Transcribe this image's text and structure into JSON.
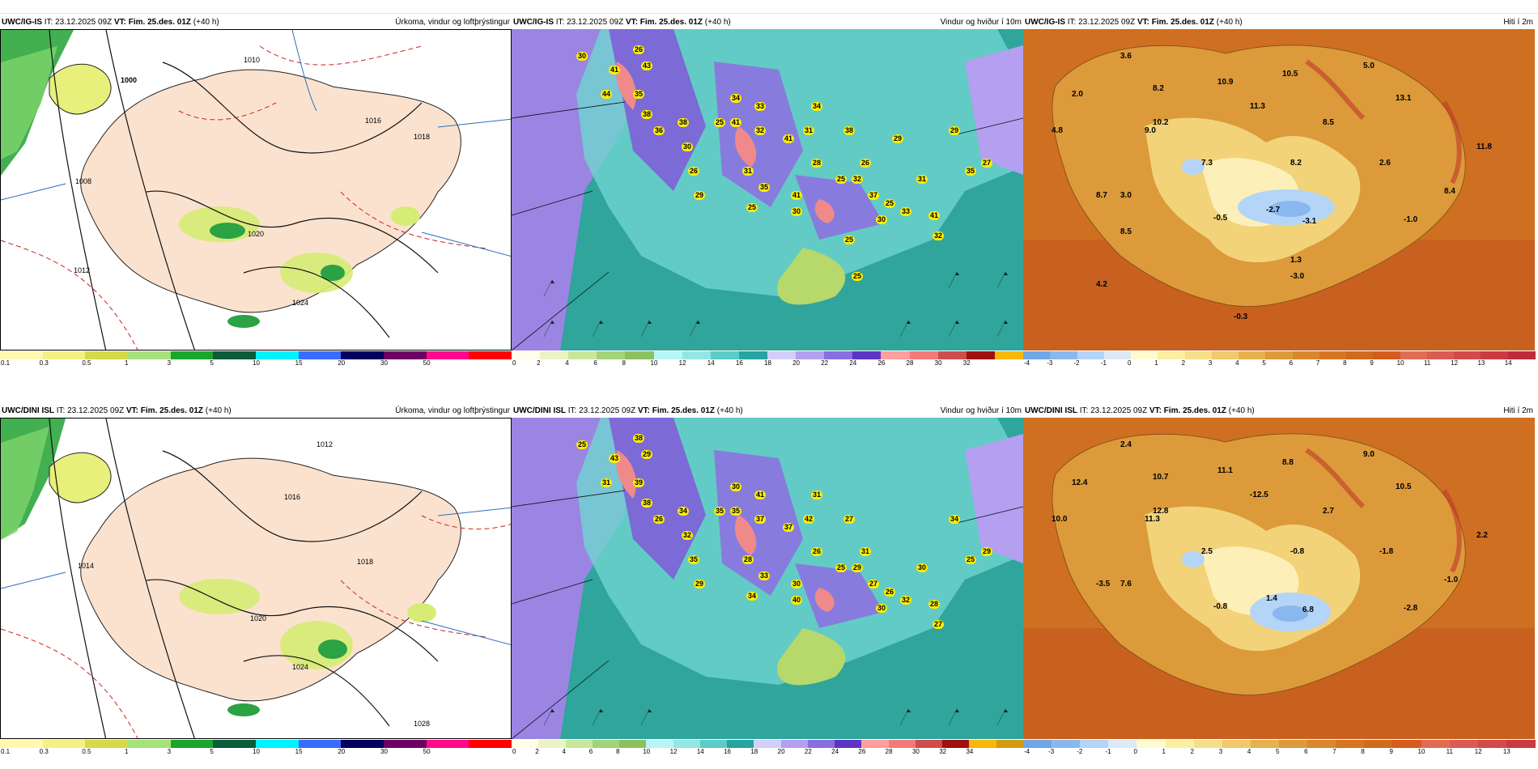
{
  "rows": [
    {
      "source": "UWC/IG-IS",
      "it_label": "IT:",
      "it_value": "23.12.2025 09Z",
      "vt_label": "VT: Fim. 25.des. 01Z",
      "lead": "(+40 h)",
      "panels": [
        {
          "type": "precip",
          "title": "Úrkoma, vindur og loftþrýstingur",
          "isobars": [
            "1000",
            "1008",
            "1010",
            "1012",
            "1016",
            "1018",
            "1020",
            "1024"
          ]
        },
        {
          "type": "wind",
          "title": "Vindur og hviður í 10m",
          "labels": [
            "30",
            "26",
            "41",
            "43",
            "44",
            "35",
            "38",
            "38",
            "36",
            "34",
            "41",
            "30",
            "26",
            "29",
            "25",
            "33",
            "32",
            "31",
            "35",
            "25",
            "41",
            "31",
            "41",
            "30",
            "38",
            "34",
            "28",
            "25",
            "32",
            "26",
            "37",
            "30",
            "25",
            "33",
            "31",
            "41",
            "32",
            "29",
            "35",
            "27",
            "29",
            "25",
            "25"
          ]
        },
        {
          "type": "temp",
          "title": "Hiti í 2m",
          "labels": [
            "3.6",
            "8.2",
            "10.9",
            "10.5",
            "5.0",
            "2.0",
            "10.2",
            "11.3",
            "13.1",
            "4.8",
            "9.0",
            "8.5",
            "11.8",
            "7.3",
            "8.2",
            "2.6",
            "8.7",
            "3.0",
            "-0.5",
            "-2.7",
            "-3.1",
            "-1.0",
            "8.4",
            "8.5",
            "1.3",
            "4.2",
            "-3.0",
            "-0.3"
          ]
        }
      ]
    },
    {
      "source": "UWC/DINI ISL",
      "it_label": "IT:",
      "it_value": "23.12.2025 09Z",
      "vt_label": "VT: Fim. 25.des. 01Z",
      "lead": "(+40 h)",
      "panels": [
        {
          "type": "precip",
          "title": "Úrkoma, vindur og loftþrýstingur",
          "isobars": [
            "1012",
            "1014",
            "1016",
            "1018",
            "1020",
            "1024",
            "1028"
          ]
        },
        {
          "type": "wind",
          "title": "Vindur og hviður í 10m",
          "labels": [
            "25",
            "38",
            "43",
            "29",
            "31",
            "39",
            "38",
            "34",
            "26",
            "30",
            "35",
            "32",
            "35",
            "29",
            "35",
            "41",
            "37",
            "28",
            "33",
            "34",
            "37",
            "42",
            "30",
            "40",
            "27",
            "31",
            "26",
            "25",
            "29",
            "31",
            "27",
            "30",
            "26",
            "32",
            "30",
            "28",
            "27",
            "34",
            "25",
            "29"
          ]
        },
        {
          "type": "temp",
          "title": "Hiti í 2m",
          "labels": [
            "2.4",
            "10.7",
            "11.1",
            "8.8",
            "9.0",
            "12.4",
            "12.8",
            "-12.5",
            "10.5",
            "10.0",
            "11.3",
            "2.7",
            "2.2",
            "2.5",
            "-0.8",
            "-1.8",
            "-3.5",
            "7.6",
            "-0.8",
            "1.4",
            "6.8",
            "-2.8",
            "-1.0"
          ]
        }
      ]
    }
  ],
  "legends": {
    "precip": {
      "labels": [
        "0.1",
        "0.3",
        "0.5",
        "1",
        "3",
        "5",
        "10",
        "15",
        "20",
        "30",
        "50"
      ],
      "colors": [
        "#fff9b0",
        "#f4f184",
        "#d4da49",
        "#a6e27a",
        "#1aa52d",
        "#0a5c3a",
        "#00f2ff",
        "#3a6bff",
        "#04005e",
        "#6d0065",
        "#ff0a8d",
        "#ff0000"
      ]
    },
    "wind_top": {
      "labels": [
        "0",
        "2",
        "4",
        "6",
        "8",
        "10",
        "12",
        "14",
        "16",
        "18",
        "20",
        "22",
        "24",
        "26",
        "28",
        "30",
        "32"
      ],
      "colors": [
        "#fffde8",
        "#e9f3c4",
        "#c9e79c",
        "#a4d37a",
        "#8dc160",
        "#b7f5f6",
        "#92e7e6",
        "#5dcbc6",
        "#27a3a0",
        "#d3cffb",
        "#b49ff0",
        "#8a6ee0",
        "#5d34c5",
        "#ff9e9e",
        "#f47a7a",
        "#cf4c4c",
        "#a01010",
        "#f7b70b"
      ]
    },
    "wind_bottom": {
      "labels": [
        "0",
        "2",
        "4",
        "6",
        "8",
        "10",
        "12",
        "14",
        "16",
        "18",
        "20",
        "22",
        "24",
        "26",
        "28",
        "30",
        "32",
        "34"
      ],
      "colors": [
        "#fffde8",
        "#e9f3c4",
        "#c9e79c",
        "#a4d37a",
        "#8dc160",
        "#b7f5f6",
        "#92e7e6",
        "#5dcbc6",
        "#27a3a0",
        "#d3cffb",
        "#b49ff0",
        "#8a6ee0",
        "#5d34c5",
        "#ff9e9e",
        "#f47a7a",
        "#cf4c4c",
        "#a01010",
        "#f7b70b",
        "#d39a15"
      ]
    },
    "temp_top": {
      "labels": [
        "-4",
        "-3",
        "-2",
        "-1",
        "0",
        "1",
        "2",
        "3",
        "4",
        "5",
        "6",
        "7",
        "8",
        "9",
        "10",
        "11",
        "12",
        "13",
        "14"
      ],
      "colors": [
        "#6fa6e6",
        "#8ab8ee",
        "#b4d4f8",
        "#dbeaf6",
        "#fffbd0",
        "#fcefa4",
        "#f6df8a",
        "#efc96e",
        "#e6b14f",
        "#dc9a3a",
        "#d8872d",
        "#d47624",
        "#cf6a1f",
        "#d55c1e",
        "#df6d54",
        "#d95b53",
        "#d24a4b",
        "#c93a43",
        "#bf2b3a"
      ]
    },
    "temp_bottom": {
      "labels": [
        "-4",
        "-3",
        "-2",
        "-1",
        "0",
        "1",
        "2",
        "3",
        "4",
        "5",
        "6",
        "7",
        "8",
        "9",
        "10",
        "11",
        "12",
        "13"
      ],
      "colors": [
        "#6fa6e6",
        "#8ab8ee",
        "#b4d4f8",
        "#dbeaf6",
        "#fffbd0",
        "#fcefa4",
        "#f6df8a",
        "#efc96e",
        "#e6b14f",
        "#dc9a3a",
        "#d8872d",
        "#d47624",
        "#cf6a1f",
        "#d55c1e",
        "#df6d54",
        "#d95b53",
        "#d24a4b",
        "#c93a43"
      ]
    }
  }
}
